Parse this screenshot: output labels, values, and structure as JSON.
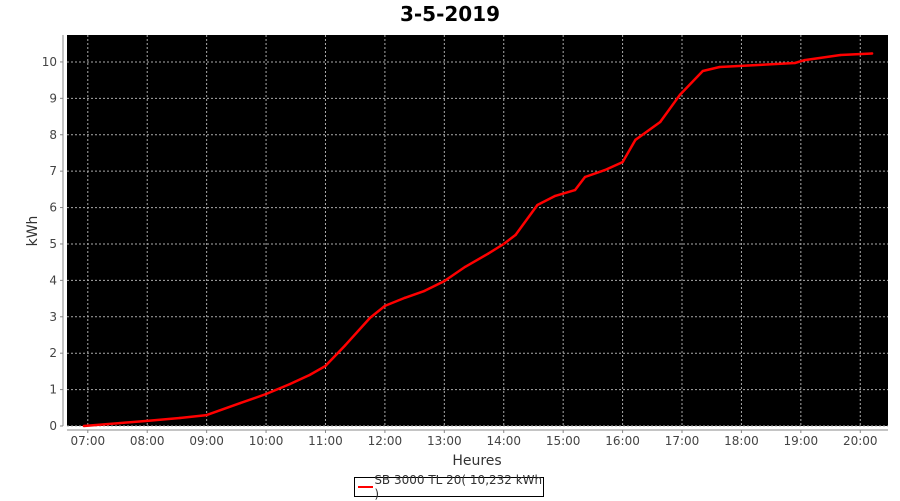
{
  "chart_data": {
    "type": "line",
    "title": "3-5-2019",
    "xlabel": "Heures",
    "ylabel": "kWh",
    "xlim": [
      "06:39",
      "20:28"
    ],
    "ylim": [
      0,
      10.74
    ],
    "x_ticks": [
      "07:00",
      "08:00",
      "09:00",
      "10:00",
      "11:00",
      "12:00",
      "13:00",
      "14:00",
      "15:00",
      "16:00",
      "17:00",
      "18:00",
      "19:00",
      "20:00"
    ],
    "y_ticks": [
      0,
      1,
      2,
      3,
      4,
      5,
      6,
      7,
      8,
      9,
      10
    ],
    "grid": true,
    "background": "#000000",
    "legend_position": "bottom",
    "series": [
      {
        "name": "SB 3000 TL 20( 10,232 kWh )",
        "color": "#ff0000",
        "x": [
          "06:56",
          "07:32",
          "08:00",
          "08:33",
          "09:00",
          "09:34",
          "10:00",
          "10:24",
          "10:44",
          "11:00",
          "11:20",
          "11:45",
          "12:00",
          "12:20",
          "12:40",
          "13:00",
          "13:21",
          "13:44",
          "14:00",
          "14:12",
          "14:34",
          "14:52",
          "15:12",
          "15:22",
          "15:42",
          "16:00",
          "16:13",
          "16:38",
          "16:58",
          "17:21",
          "17:38",
          "18:19",
          "18:54",
          "19:04",
          "19:40",
          "20:12"
        ],
        "y": [
          0,
          0.08,
          0.14,
          0.22,
          0.3,
          0.63,
          0.88,
          1.15,
          1.4,
          1.65,
          2.22,
          2.97,
          3.3,
          3.52,
          3.71,
          3.98,
          4.37,
          4.73,
          5.0,
          5.25,
          6.07,
          6.32,
          6.48,
          6.84,
          7.03,
          7.25,
          7.86,
          8.35,
          9.1,
          9.75,
          9.86,
          9.92,
          9.97,
          10.05,
          10.19,
          10.232
        ]
      }
    ]
  }
}
